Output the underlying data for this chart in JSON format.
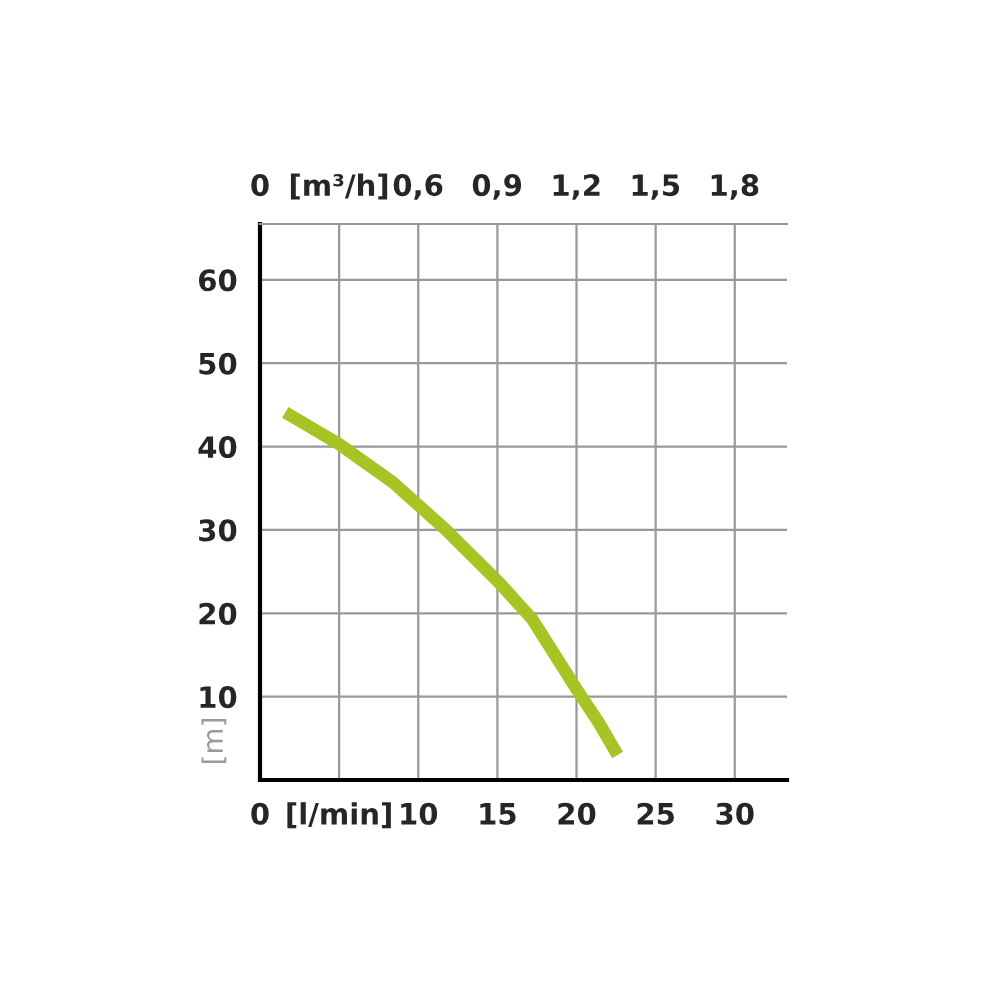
{
  "chart_data": {
    "type": "line",
    "ylabel": "[m]",
    "x": [
      1.6,
      5.0,
      8.4,
      11.7,
      15.1,
      17.2,
      20.0,
      21.4,
      22.6
    ],
    "series": [
      {
        "color": "#a6c423",
        "values": [
          44.1,
          40.3,
          35.7,
          30.1,
          23.7,
          19.3,
          10.9,
          6.9,
          3.0
        ]
      }
    ],
    "xlim": [
      0,
      33.3
    ],
    "xticks": [
      0,
      {
        "value": 5,
        "label": "[l/min]"
      },
      10,
      15,
      20,
      25,
      30
    ],
    "x2lim": [
      0,
      2.0
    ],
    "x2ticks": [
      0,
      {
        "value": 0.3,
        "label": "[m³/h]"
      },
      {
        "value": 0.6,
        "label": "0,6"
      },
      {
        "value": 0.9,
        "label": "0,9"
      },
      {
        "value": 1.2,
        "label": "1,2"
      },
      {
        "value": 1.5,
        "label": "1,5"
      },
      {
        "value": 1.8,
        "label": "1,8"
      }
    ],
    "ylim": [
      0,
      66.7
    ],
    "yticks": [
      {
        "value": 0,
        "label": null
      },
      10,
      20,
      30,
      40,
      50,
      60
    ],
    "grid": true,
    "marker": "none",
    "line_style": "solid"
  }
}
